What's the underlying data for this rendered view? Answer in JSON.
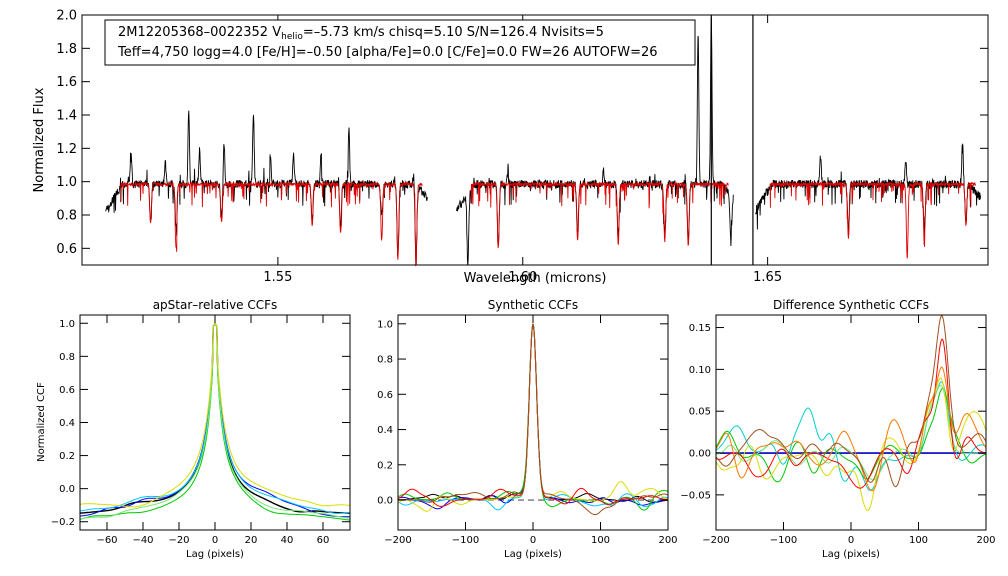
{
  "chart_data": [
    {
      "type": "line",
      "id": "spectrum",
      "title": "",
      "annotation": {
        "line1_star": "2M12205368–0022352",
        "line1_v": "V",
        "line1_sub": "helio",
        "line1_rest": "=–5.73 km/s  chisq=5.10  S/N=126.4  Nvisits=5",
        "line2": "Teff=4,750 logg=4.0 [Fe/H]=–0.50 [alpha/Fe]=0.0 [C/Fe]=0.0 FW=26 AUTOFW=26"
      },
      "xlabel": "Wavelength (microns)",
      "ylabel": "Normalized Flux",
      "xlim": [
        1.51,
        1.695
      ],
      "ylim": [
        0.5,
        2.0
      ],
      "xticks": [
        {
          "v": 1.55,
          "label": "1.55"
        },
        {
          "v": 1.6,
          "label": "1.60"
        },
        {
          "v": 1.65,
          "label": "1.65"
        }
      ],
      "yticks": [
        {
          "v": 0.6,
          "label": "0.6"
        },
        {
          "v": 0.8,
          "label": "0.8"
        },
        {
          "v": 1.0,
          "label": "1.0"
        },
        {
          "v": 1.2,
          "label": "1.2"
        },
        {
          "v": 1.4,
          "label": "1.4"
        },
        {
          "v": 1.6,
          "label": "1.6"
        },
        {
          "v": 1.8,
          "label": "1.8"
        },
        {
          "v": 2.0,
          "label": "2.0"
        }
      ],
      "chips": [
        [
          1.5148,
          1.5805
        ],
        [
          1.5865,
          1.643
        ],
        [
          1.6475,
          1.6935
        ]
      ],
      "series": [
        {
          "name": "observed",
          "color": "#000000",
          "emission": [
            [
              1.52,
              1.2
            ],
            [
              1.527,
              1.13
            ],
            [
              1.5318,
              1.45
            ],
            [
              1.534,
              1.2
            ],
            [
              1.539,
              1.25
            ],
            [
              1.545,
              1.44
            ],
            [
              1.5485,
              1.14
            ],
            [
              1.5532,
              1.18
            ],
            [
              1.5588,
              1.2
            ],
            [
              1.5645,
              1.32
            ],
            [
              1.5712,
              1.12
            ],
            [
              1.5778,
              1.07
            ],
            [
              1.597,
              1.1
            ],
            [
              1.6165,
              1.08
            ],
            [
              1.6358,
              1.9
            ],
            [
              1.6385,
              2.0
            ],
            [
              1.6608,
              1.16
            ],
            [
              1.6782,
              1.14
            ],
            [
              1.6898,
              1.25
            ]
          ],
          "absorption": [
            [
              1.524,
              0.78
            ],
            [
              1.5292,
              0.74
            ],
            [
              1.5385,
              0.79
            ],
            [
              1.557,
              0.78
            ],
            [
              1.5628,
              0.75
            ],
            [
              1.5712,
              0.7
            ],
            [
              1.5745,
              0.56
            ],
            [
              1.5782,
              0.53
            ],
            [
              1.5888,
              0.57
            ],
            [
              1.595,
              0.64
            ],
            [
              1.6112,
              0.7
            ],
            [
              1.6195,
              0.66
            ],
            [
              1.629,
              0.7
            ],
            [
              1.6338,
              0.65
            ],
            [
              1.6425,
              0.71
            ],
            [
              1.647,
              0.49
            ],
            [
              1.6665,
              0.7
            ],
            [
              1.682,
              0.7
            ],
            [
              1.6905,
              0.77
            ]
          ]
        },
        {
          "name": "model",
          "color": "#e00000",
          "absorption": [
            [
              1.524,
              0.77
            ],
            [
              1.5292,
              0.61
            ],
            [
              1.5385,
              0.77
            ],
            [
              1.557,
              0.75
            ],
            [
              1.5628,
              0.7
            ],
            [
              1.5712,
              0.66
            ],
            [
              1.5745,
              0.55
            ],
            [
              1.5782,
              0.52
            ],
            [
              1.5888,
              0.55
            ],
            [
              1.595,
              0.62
            ],
            [
              1.6112,
              0.66
            ],
            [
              1.6195,
              0.64
            ],
            [
              1.629,
              0.66
            ],
            [
              1.6338,
              0.63
            ],
            [
              1.6425,
              0.7
            ],
            [
              1.6665,
              0.68
            ],
            [
              1.6785,
              0.56
            ],
            [
              1.682,
              0.66
            ],
            [
              1.6905,
              0.75
            ]
          ]
        }
      ],
      "vlines": [
        [
          1.6385,
          2.0,
          0.5
        ],
        [
          1.647,
          2.0,
          0.5
        ]
      ]
    },
    {
      "type": "line",
      "id": "ccf1",
      "title": "apStar–relative CCFs",
      "xlabel": "Lag (pixels)",
      "ylabel": "Normalized CCF",
      "xlim": [
        -75,
        75
      ],
      "ylim": [
        -0.25,
        1.05
      ],
      "xticks": [
        {
          "v": -60,
          "label": "−60"
        },
        {
          "v": -40,
          "label": "−40"
        },
        {
          "v": -20,
          "label": "−20"
        },
        {
          "v": 0,
          "label": "0"
        },
        {
          "v": 20,
          "label": "20"
        },
        {
          "v": 40,
          "label": "40"
        },
        {
          "v": 60,
          "label": "60"
        }
      ],
      "yticks": [
        {
          "v": -0.2,
          "label": "−0.2"
        },
        {
          "v": 0.0,
          "label": "0.0"
        },
        {
          "v": 0.2,
          "label": "0.2"
        },
        {
          "v": 0.4,
          "label": "0.4"
        },
        {
          "v": 0.6,
          "label": "0.6"
        },
        {
          "v": 0.8,
          "label": "0.8"
        },
        {
          "v": 1.0,
          "label": "1.0"
        }
      ],
      "series": [
        {
          "name": "combined",
          "color": "#000000",
          "width": 5.5,
          "offset": 0.0,
          "bump": 0.02,
          "tail": 0.0
        },
        {
          "name": "visit-blue",
          "color": "#0000ff",
          "width": 6.0,
          "offset": 0.04,
          "bump": 0.04,
          "tail": -0.02
        },
        {
          "name": "visit-cyan",
          "color": "#00c8ff",
          "width": 5.8,
          "offset": 0.02,
          "bump": 0.05,
          "tail": 0.01
        },
        {
          "name": "visit-green",
          "color": "#00c800",
          "width": 5.0,
          "offset": -0.03,
          "bump": 0.0,
          "tail": -0.04
        },
        {
          "name": "visit-lime",
          "color": "#78e678",
          "width": 5.3,
          "offset": -0.02,
          "bump": 0.01,
          "tail": -0.03
        },
        {
          "name": "visit-yellow",
          "color": "#dcdc00",
          "width": 6.8,
          "offset": 0.03,
          "bump": -0.03,
          "tail": 0.04
        }
      ]
    },
    {
      "type": "line",
      "id": "ccf2",
      "title": "Synthetic CCFs",
      "xlabel": "Lag (pixels)",
      "ylabel": "",
      "xlim": [
        -200,
        200
      ],
      "ylim": [
        -0.17,
        1.05
      ],
      "xticks": [
        {
          "v": -200,
          "label": "−200"
        },
        {
          "v": -100,
          "label": "−100"
        },
        {
          "v": 0,
          "label": "0"
        },
        {
          "v": 100,
          "label": "100"
        },
        {
          "v": 200,
          "label": "200"
        }
      ],
      "yticks": [
        {
          "v": 0.0,
          "label": "0.0"
        },
        {
          "v": 0.2,
          "label": "0.2"
        },
        {
          "v": 0.4,
          "label": "0.4"
        },
        {
          "v": 0.6,
          "label": "0.6"
        },
        {
          "v": 0.8,
          "label": "0.8"
        },
        {
          "v": 1.0,
          "label": "1.0"
        }
      ],
      "hline": 0.0,
      "series": [
        {
          "name": "combined",
          "color": "#000000",
          "seed": 1,
          "amp": 0.035
        },
        {
          "name": "visit-blue",
          "color": "#0000ff",
          "seed": 2,
          "amp": 0.045
        },
        {
          "name": "visit-cyan",
          "color": "#00c8ff",
          "seed": 3,
          "amp": 0.045
        },
        {
          "name": "visit-green",
          "color": "#00c800",
          "seed": 4,
          "amp": 0.045
        },
        {
          "name": "visit-yellow",
          "color": "#dcdc00",
          "seed": 5,
          "amp": 0.05
        },
        {
          "name": "visit-red",
          "color": "#ff0000",
          "seed": 6,
          "amp": 0.045
        },
        {
          "name": "visit-brown",
          "color": "#a05020",
          "seed": 7,
          "amp": 0.04
        }
      ]
    },
    {
      "type": "line",
      "id": "ccf3",
      "title": "Difference Synthetic CCFs",
      "xlabel": "Lag (pixels)",
      "ylabel": "",
      "xlim": [
        -200,
        200
      ],
      "ylim": [
        -0.092,
        0.165
      ],
      "xticks": [
        {
          "v": -200,
          "label": "−200"
        },
        {
          "v": -100,
          "label": "−100"
        },
        {
          "v": 0,
          "label": "0"
        },
        {
          "v": 100,
          "label": "100"
        },
        {
          "v": 200,
          "label": "200"
        }
      ],
      "yticks": [
        {
          "v": -0.05,
          "label": "−0.05"
        },
        {
          "v": 0.0,
          "label": "0.00"
        },
        {
          "v": 0.05,
          "label": "0.05"
        },
        {
          "v": 0.1,
          "label": "0.10"
        },
        {
          "v": 0.15,
          "label": "0.15"
        }
      ],
      "hline": 0.0,
      "series": [
        {
          "name": "baseline",
          "color": "#0000c0",
          "seed": 0,
          "amp": 0.0,
          "peak": 0.0
        },
        {
          "name": "visit-cyan",
          "color": "#00d0d0",
          "seed": 11,
          "amp": 0.03,
          "peak": 0.06
        },
        {
          "name": "visit-green",
          "color": "#00c800",
          "seed": 12,
          "amp": 0.028,
          "peak": 0.07
        },
        {
          "name": "visit-lime",
          "color": "#78e678",
          "seed": 13,
          "amp": 0.026,
          "peak": 0.065
        },
        {
          "name": "visit-yellow",
          "color": "#dcdc00",
          "seed": 14,
          "amp": 0.034,
          "peak": 0.095
        },
        {
          "name": "visit-red",
          "color": "#ff0000",
          "seed": 15,
          "amp": 0.028,
          "peak": 0.155
        },
        {
          "name": "visit-orange",
          "color": "#ff7800",
          "seed": 16,
          "amp": 0.03,
          "peak": 0.1
        },
        {
          "name": "visit-brown",
          "color": "#a05020",
          "seed": 17,
          "amp": 0.026,
          "peak": 0.14
        }
      ]
    }
  ]
}
